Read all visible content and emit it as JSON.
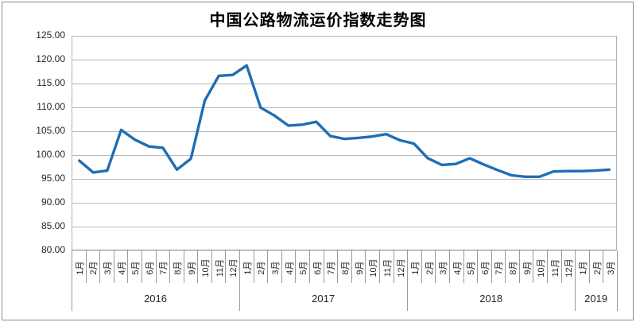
{
  "title": "中国公路物流运价指数走势图",
  "chart_data": {
    "type": "line",
    "title": "中国公路物流运价指数走势图",
    "xlabel": "",
    "ylabel": "",
    "ylim": [
      80,
      125
    ],
    "ytick_step": 5,
    "grid": true,
    "legend": "none",
    "ytick_labels": [
      "125.00",
      "120.00",
      "115.00",
      "110.00",
      "105.00",
      "100.00",
      "95.00",
      "90.00",
      "85.00",
      "80.00"
    ],
    "year_groups": [
      {
        "year": "2016",
        "months": [
          "1月",
          "2月",
          "3月",
          "4月",
          "5月",
          "6月",
          "7月",
          "8月",
          "9月",
          "10月",
          "11月",
          "12月"
        ]
      },
      {
        "year": "2017",
        "months": [
          "1月",
          "2月",
          "3月",
          "4月",
          "5月",
          "6月",
          "7月",
          "8月",
          "9月",
          "10月",
          "11月",
          "12月"
        ]
      },
      {
        "year": "2018",
        "months": [
          "1月",
          "2月",
          "3月",
          "4月",
          "5月",
          "6月",
          "7月",
          "8月",
          "9月",
          "10月",
          "11月",
          "12月"
        ]
      },
      {
        "year": "2019",
        "months": [
          "1月",
          "2月",
          "3月"
        ]
      }
    ],
    "series": [
      {
        "name": "中国公路物流运价指数",
        "color": "#1f6eb5",
        "values": [
          98.8,
          96.3,
          96.7,
          105.3,
          103.2,
          101.8,
          101.5,
          96.9,
          99.2,
          111.5,
          116.7,
          116.9,
          118.9,
          110.0,
          108.3,
          106.2,
          106.4,
          107.0,
          104.0,
          103.4,
          103.6,
          103.9,
          104.4,
          103.1,
          102.4,
          99.3,
          97.9,
          98.1,
          99.3,
          98.0,
          96.8,
          95.7,
          95.4,
          95.4,
          96.5,
          96.6,
          96.6,
          96.7,
          96.9
        ]
      }
    ],
    "colors": {
      "line": "#1f6eb5",
      "gridline": "#b9b9b9",
      "axis": "#7f7f7f",
      "tick_text": "#262626",
      "frame": "#8a8a8a"
    }
  }
}
